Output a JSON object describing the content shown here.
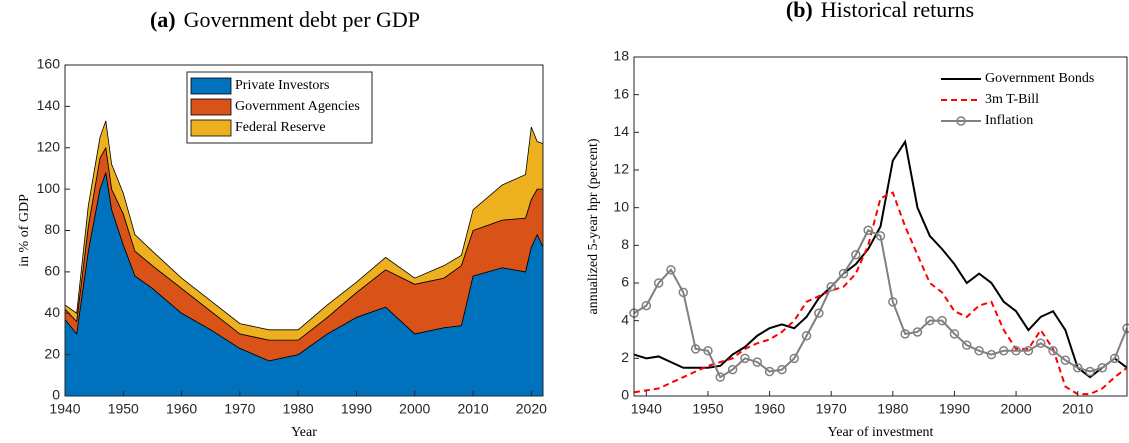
{
  "chart_data": [
    {
      "type": "area",
      "stacked": true,
      "panel": "(a)",
      "title": "Government debt per GDP",
      "xlabel": "Year",
      "ylabel": "in % of GDP",
      "x": [
        1940,
        1942,
        1944,
        1946,
        1947,
        1948,
        1950,
        1952,
        1955,
        1960,
        1965,
        1970,
        1975,
        1980,
        1985,
        1990,
        1995,
        2000,
        2005,
        2008,
        2010,
        2015,
        2019,
        2020,
        2021,
        2022
      ],
      "series": [
        {
          "name": "Private Investors",
          "color": "#0072bd",
          "values": [
            37,
            30,
            70,
            100,
            108,
            90,
            73,
            58,
            52,
            40,
            32,
            23,
            17,
            20,
            30,
            38,
            43,
            30,
            33,
            34,
            58,
            62,
            60,
            72,
            78,
            72
          ]
        },
        {
          "name": "Government Agencies",
          "color": "#d95319",
          "values": [
            5,
            6,
            12,
            15,
            12,
            10,
            15,
            12,
            11,
            12,
            9,
            7,
            10,
            7,
            8,
            12,
            18,
            24,
            24,
            29,
            22,
            23,
            26,
            23,
            22,
            28
          ]
        },
        {
          "name": "Federal Reserve",
          "color": "#edb120",
          "values": [
            2,
            4,
            10,
            10,
            13,
            12,
            10,
            8,
            7,
            5,
            5,
            5,
            5,
            5,
            6,
            5,
            6,
            3,
            6,
            5,
            10,
            17,
            21,
            35,
            23,
            22
          ]
        }
      ],
      "xlim": [
        1940,
        2022
      ],
      "xticks": [
        1940,
        1950,
        1960,
        1970,
        1980,
        1990,
        2000,
        2010,
        2020
      ],
      "ylim": [
        0,
        160
      ],
      "yticks": [
        0,
        20,
        40,
        60,
        80,
        100,
        120,
        140,
        160
      ],
      "legend": "north"
    },
    {
      "type": "line",
      "panel": "(b)",
      "title": "Historical returns",
      "xlabel": "Year of investment",
      "ylabel": "annualized 5-year hpr (percent)",
      "x": [
        1938,
        1940,
        1942,
        1944,
        1946,
        1948,
        1950,
        1952,
        1954,
        1956,
        1958,
        1960,
        1962,
        1964,
        1966,
        1968,
        1970,
        1972,
        1974,
        1976,
        1978,
        1980,
        1982,
        1984,
        1986,
        1988,
        1990,
        1992,
        1994,
        1996,
        1998,
        2000,
        2002,
        2004,
        2006,
        2008,
        2010,
        2012,
        2014,
        2016,
        2018
      ],
      "series": [
        {
          "name": "Government Bonds",
          "color": "#000000",
          "style": "solid",
          "values": [
            2.2,
            2.0,
            2.1,
            1.8,
            1.5,
            1.5,
            1.5,
            1.6,
            2.2,
            2.6,
            3.2,
            3.6,
            3.8,
            3.6,
            4.2,
            5.2,
            5.8,
            6.5,
            7.0,
            7.8,
            9.0,
            12.5,
            13.5,
            10,
            8.5,
            7.8,
            7,
            6,
            6.5,
            6,
            5,
            4.5,
            3.5,
            4.2,
            4.5,
            3.5,
            1.5,
            1,
            1.5,
            2.0,
            1.5
          ]
        },
        {
          "name": "3m T-Bill",
          "color": "#ff0000",
          "style": "dashed",
          "values": [
            0.2,
            0.3,
            0.4,
            0.7,
            1.0,
            1.3,
            1.6,
            1.8,
            2.0,
            2.5,
            2.8,
            3.0,
            3.4,
            4.0,
            5.0,
            5.3,
            5.6,
            5.8,
            6.5,
            8,
            10.5,
            10.8,
            9,
            7.5,
            6,
            5.5,
            4.5,
            4.2,
            4.8,
            5.0,
            3.5,
            2.5,
            2.5,
            3.5,
            2.5,
            0.5,
            0.1,
            0.1,
            0.4,
            1.0,
            1.5
          ]
        },
        {
          "name": "Inflation",
          "color": "#808080",
          "style": "marker",
          "values": [
            4.4,
            4.8,
            6.0,
            6.7,
            5.5,
            2.5,
            2.4,
            1.0,
            1.4,
            2.0,
            1.8,
            1.3,
            1.4,
            2.0,
            3.2,
            4.4,
            5.8,
            6.5,
            7.5,
            8.8,
            8.5,
            5,
            3.3,
            3.4,
            4,
            4,
            3.3,
            2.7,
            2.4,
            2.2,
            2.4,
            2.4,
            2.4,
            2.8,
            2.4,
            1.9,
            1.5,
            1.3,
            1.5,
            2.0,
            3.6
          ]
        }
      ],
      "xlim": [
        1938,
        2018
      ],
      "xticks": [
        1940,
        1950,
        1960,
        1970,
        1980,
        1990,
        2000,
        2010
      ],
      "ylim": [
        0,
        18
      ],
      "yticks": [
        0,
        2,
        4,
        6,
        8,
        10,
        12,
        14,
        16,
        18
      ],
      "legend": "northeast"
    }
  ]
}
